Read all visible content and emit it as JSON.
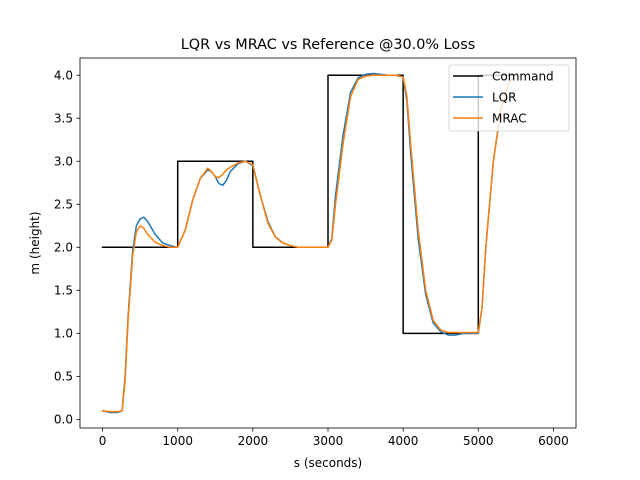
{
  "chart_data": {
    "type": "line",
    "title": "LQR vs MRAC vs Reference @30.0% Loss",
    "xlabel": "s (seconds)",
    "ylabel": "m (height)",
    "xlim": [
      -300,
      6300
    ],
    "ylim": [
      -0.1,
      4.2
    ],
    "xticks": [
      0,
      1000,
      2000,
      3000,
      4000,
      5000,
      6000
    ],
    "yticks": [
      0.0,
      0.5,
      1.0,
      1.5,
      2.0,
      2.5,
      3.0,
      3.5,
      4.0
    ],
    "xtick_labels": [
      "0",
      "1000",
      "2000",
      "3000",
      "4000",
      "5000",
      "6000"
    ],
    "ytick_labels": [
      "0.0",
      "0.5",
      "1.0",
      "1.5",
      "2.0",
      "2.5",
      "3.0",
      "3.5",
      "4.0"
    ],
    "grid": false,
    "legend": "top-right",
    "series": [
      {
        "name": "Command",
        "color": "#000000",
        "x": [
          0,
          1000,
          1000,
          2000,
          2000,
          3000,
          3000,
          4000,
          4000,
          5000,
          5000,
          5500
        ],
        "y": [
          2.0,
          2.0,
          3.0,
          3.0,
          2.0,
          2.0,
          4.0,
          4.0,
          1.0,
          1.0,
          4.0,
          4.0
        ]
      },
      {
        "name": "LQR",
        "color": "#1f77b4",
        "x": [
          0,
          100,
          200,
          260,
          300,
          340,
          400,
          450,
          500,
          550,
          600,
          700,
          800,
          900,
          1000,
          1100,
          1200,
          1300,
          1400,
          1450,
          1500,
          1550,
          1600,
          1650,
          1700,
          1800,
          1900,
          2000,
          2100,
          2200,
          2300,
          2400,
          2500,
          2600,
          2700,
          2800,
          2900,
          3000,
          3050,
          3100,
          3200,
          3300,
          3400,
          3500,
          3600,
          3700,
          3800,
          3900,
          4000,
          4050,
          4100,
          4200,
          4300,
          4400,
          4500,
          4600,
          4700,
          4800,
          4900,
          5000,
          5050,
          5100,
          5200,
          5300,
          5400,
          5500
        ],
        "y": [
          0.1,
          0.08,
          0.08,
          0.1,
          0.5,
          1.2,
          1.95,
          2.25,
          2.33,
          2.35,
          2.3,
          2.15,
          2.05,
          2.02,
          2.0,
          2.2,
          2.55,
          2.8,
          2.9,
          2.88,
          2.82,
          2.74,
          2.72,
          2.78,
          2.88,
          2.97,
          3.0,
          2.95,
          2.6,
          2.3,
          2.12,
          2.05,
          2.02,
          2.0,
          2.0,
          2.0,
          2.0,
          2.0,
          2.1,
          2.6,
          3.3,
          3.8,
          3.97,
          4.01,
          4.02,
          4.01,
          4.0,
          4.0,
          3.98,
          3.7,
          3.1,
          2.1,
          1.45,
          1.12,
          1.02,
          0.98,
          0.98,
          1.0,
          1.0,
          1.0,
          1.3,
          2.0,
          3.0,
          3.6,
          3.9,
          4.0
        ]
      },
      {
        "name": "MRAC",
        "color": "#ff7f0e",
        "x": [
          0,
          100,
          200,
          260,
          300,
          340,
          400,
          450,
          500,
          550,
          600,
          700,
          800,
          900,
          1000,
          1100,
          1200,
          1300,
          1400,
          1450,
          1500,
          1550,
          1600,
          1650,
          1700,
          1800,
          1900,
          2000,
          2100,
          2200,
          2300,
          2400,
          2500,
          2600,
          2700,
          2800,
          2900,
          3000,
          3050,
          3100,
          3200,
          3300,
          3400,
          3500,
          3600,
          3700,
          3800,
          3900,
          4000,
          4050,
          4100,
          4200,
          4300,
          4400,
          4500,
          4600,
          4700,
          4800,
          4900,
          5000,
          5050,
          5100,
          5200,
          5300,
          5400,
          5500
        ],
        "y": [
          0.1,
          0.09,
          0.09,
          0.1,
          0.45,
          1.15,
          1.9,
          2.18,
          2.25,
          2.22,
          2.15,
          2.06,
          2.02,
          2.0,
          2.0,
          2.2,
          2.55,
          2.8,
          2.92,
          2.88,
          2.82,
          2.81,
          2.85,
          2.9,
          2.93,
          2.98,
          3.0,
          2.96,
          2.6,
          2.28,
          2.12,
          2.05,
          2.02,
          2.0,
          2.0,
          2.0,
          2.0,
          2.0,
          2.08,
          2.5,
          3.2,
          3.75,
          3.95,
          3.99,
          4.0,
          4.0,
          4.0,
          4.0,
          3.98,
          3.75,
          3.2,
          2.2,
          1.5,
          1.15,
          1.04,
          1.01,
          1.01,
          1.01,
          1.01,
          1.01,
          1.3,
          2.0,
          3.0,
          3.6,
          3.9,
          4.0
        ]
      }
    ]
  }
}
